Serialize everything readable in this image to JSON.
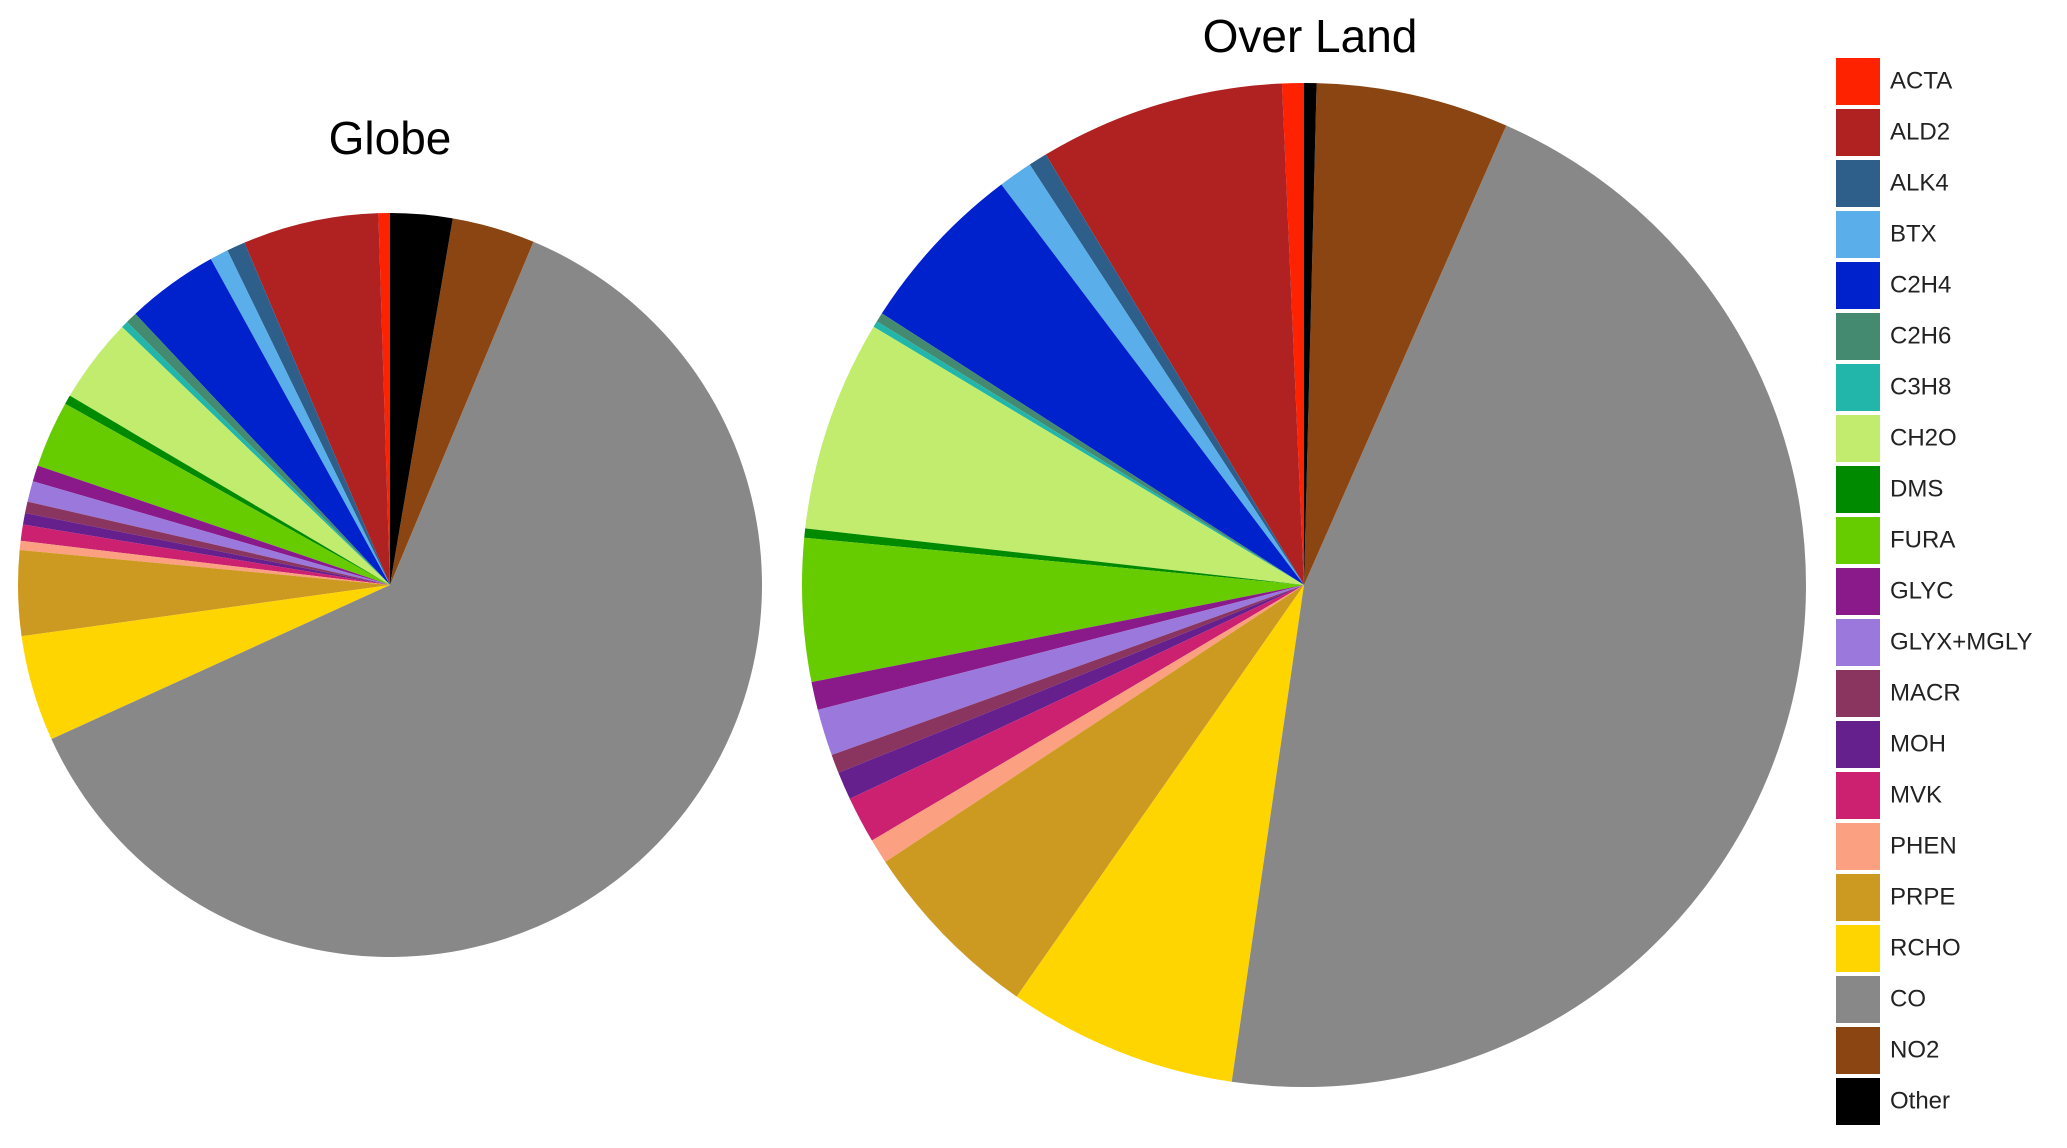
{
  "chart_data": [
    {
      "type": "pie",
      "title": "Globe",
      "categories": [
        "ACTA",
        "ALD2",
        "ALK4",
        "BTX",
        "C2H4",
        "C2H6",
        "C3H8",
        "CH2O",
        "DMS",
        "FURA",
        "GLYC",
        "GLYX+MGLY",
        "MACR",
        "MOH",
        "MVK",
        "PHEN",
        "PRPE",
        "RCHO",
        "CO",
        "NO2",
        "Other"
      ],
      "values": [
        0.5,
        5.9,
        0.8,
        0.8,
        4.0,
        0.5,
        0.3,
        3.7,
        0.4,
        2.9,
        0.7,
        0.9,
        0.5,
        0.5,
        0.7,
        0.4,
        3.7,
        4.6,
        61.9,
        3.6,
        2.7
      ],
      "colors": [
        "#ff2200",
        "#b02222",
        "#2e5f8a",
        "#5aaeea",
        "#0022cc",
        "#448a70",
        "#22b5aa",
        "#c2ec6e",
        "#008a00",
        "#66cc00",
        "#8a1a8a",
        "#9a78dc",
        "#8a3460",
        "#66208e",
        "#cc2070",
        "#fca082",
        "#cc9a20",
        "#ffd500",
        "#898888",
        "#8b4513",
        "#000000"
      ],
      "legend": "right"
    },
    {
      "type": "pie",
      "title": "Over Land",
      "categories": [
        "ACTA",
        "ALD2",
        "ALK4",
        "BTX",
        "C2H4",
        "C2H6",
        "C3H8",
        "CH2O",
        "DMS",
        "FURA",
        "GLYC",
        "GLYX+MGLY",
        "MACR",
        "MOH",
        "MVK",
        "PHEN",
        "PRPE",
        "RCHO",
        "CO",
        "NO2",
        "Other"
      ],
      "values": [
        0.7,
        7.9,
        0.6,
        1.1,
        5.6,
        0.3,
        0.2,
        6.8,
        0.3,
        4.6,
        0.9,
        1.5,
        0.6,
        0.9,
        1.5,
        0.8,
        6.0,
        7.4,
        45.7,
        6.2,
        0.4
      ],
      "colors": [
        "#ff2200",
        "#b02222",
        "#2e5f8a",
        "#5aaeea",
        "#0022cc",
        "#448a70",
        "#22b5aa",
        "#c2ec6e",
        "#008a00",
        "#66cc00",
        "#8a1a8a",
        "#9a78dc",
        "#8a3460",
        "#66208e",
        "#cc2070",
        "#fca082",
        "#cc9a20",
        "#ffd500",
        "#898888",
        "#8b4513",
        "#000000"
      ]
    }
  ]
}
